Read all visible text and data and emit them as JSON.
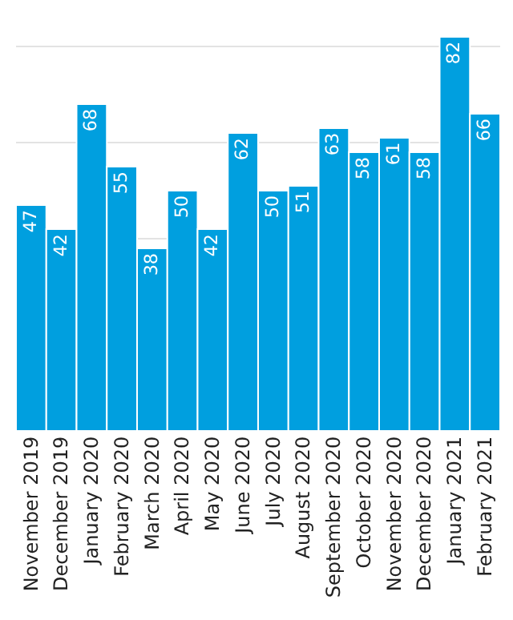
{
  "chart_data": {
    "type": "bar",
    "categories": [
      "November 2019",
      "December 2019",
      "January 2020",
      "February 2020",
      "March 2020",
      "April 2020",
      "May 2020",
      "June 2020",
      "July 2020",
      "August 2020",
      "September 2020",
      "October 2020",
      "November 2020",
      "December 2020",
      "January 2021",
      "February 2021"
    ],
    "values": [
      47,
      42,
      68,
      55,
      38,
      50,
      42,
      62,
      50,
      51,
      63,
      58,
      61,
      58,
      82,
      66
    ],
    "color": "#009fdf",
    "data_labels": true,
    "grid": "y",
    "tick_labels": "x"
  }
}
